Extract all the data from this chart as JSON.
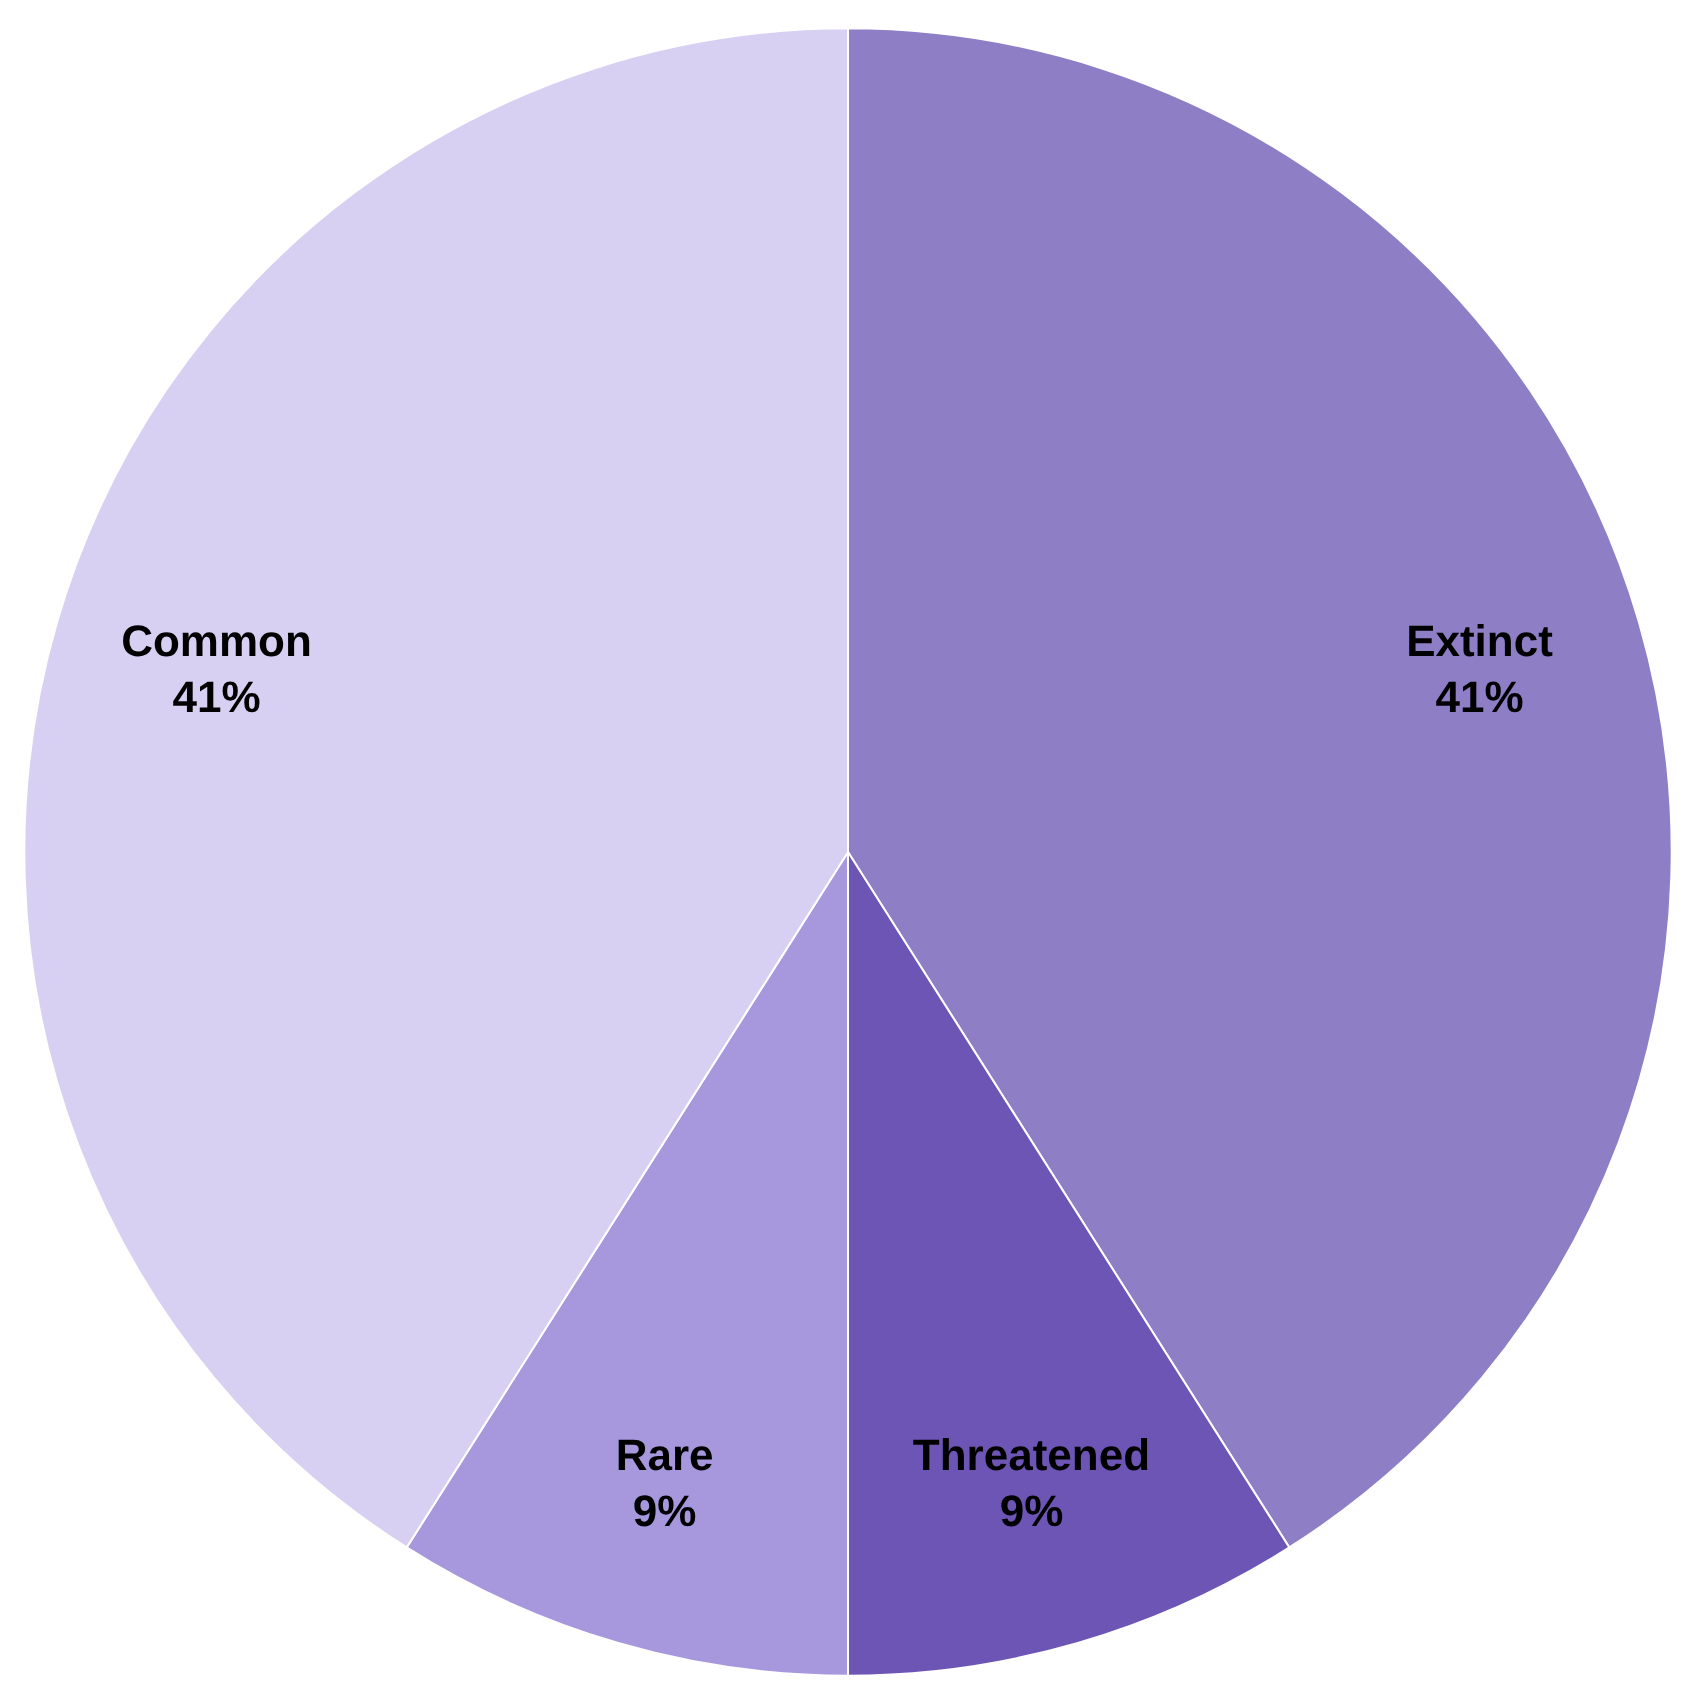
{
  "chart_data": {
    "type": "pie",
    "categories": [
      "Extinct",
      "Threatened",
      "Rare",
      "Common"
    ],
    "values": [
      41,
      9,
      9,
      41
    ],
    "colors": [
      "#8e7ec6",
      "#6c55b4",
      "#a798de",
      "#d8d0f2"
    ],
    "value_labels": [
      "41%",
      "9%",
      "9%",
      "41%"
    ]
  }
}
